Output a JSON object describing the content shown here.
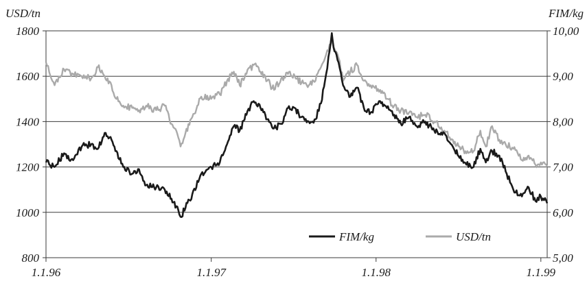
{
  "chart_data": {
    "type": "line",
    "left_axis_label": "USD/tn",
    "right_axis_label": "FIM/kg",
    "y_left_range": [
      800,
      1800
    ],
    "y_right_range": [
      5.0,
      10.0
    ],
    "y_left_ticks": [
      "1800",
      "1600",
      "1400",
      "1200",
      "1000",
      "800"
    ],
    "y_right_ticks": [
      "10,00",
      "9,00",
      "8,00",
      "7,00",
      "6,00",
      "5,00"
    ],
    "x_range": [
      "1996-01-01",
      "1999-01-15"
    ],
    "x_ticks": [
      {
        "label": "1.1.96",
        "date": "1996-01-01"
      },
      {
        "label": "1.1.97",
        "date": "1997-01-01"
      },
      {
        "label": "1.1.98",
        "date": "1998-01-01"
      },
      {
        "label": "1.1.99",
        "date": "1999-01-01"
      }
    ],
    "grid": "horizontal",
    "legend_position": "bottom-right",
    "series": [
      {
        "name": "FIM/kg",
        "axis": "right",
        "color": "#1a1a1a",
        "points": [
          [
            "1996-01-01",
            7.1
          ],
          [
            "1996-01-20",
            7.0
          ],
          [
            "1996-02-10",
            7.3
          ],
          [
            "1996-03-01",
            7.15
          ],
          [
            "1996-03-20",
            7.45
          ],
          [
            "1996-04-10",
            7.5
          ],
          [
            "1996-04-25",
            7.4
          ],
          [
            "1996-05-10",
            7.75
          ],
          [
            "1996-05-25",
            7.6
          ],
          [
            "1996-06-05",
            7.35
          ],
          [
            "1996-06-20",
            7.0
          ],
          [
            "1996-07-10",
            6.85
          ],
          [
            "1996-07-25",
            6.95
          ],
          [
            "1996-08-10",
            6.6
          ],
          [
            "1996-09-01",
            6.55
          ],
          [
            "1996-09-20",
            6.5
          ],
          [
            "1996-10-05",
            6.3
          ],
          [
            "1996-10-20",
            6.05
          ],
          [
            "1996-10-25",
            5.9
          ],
          [
            "1996-11-05",
            6.1
          ],
          [
            "1996-11-20",
            6.4
          ],
          [
            "1996-12-10",
            6.85
          ],
          [
            "1997-01-01",
            7.0
          ],
          [
            "1997-01-20",
            7.1
          ],
          [
            "1997-02-05",
            7.5
          ],
          [
            "1997-02-20",
            7.9
          ],
          [
            "1997-03-05",
            7.8
          ],
          [
            "1997-03-20",
            8.15
          ],
          [
            "1997-04-05",
            8.45
          ],
          [
            "1997-04-20",
            8.3
          ],
          [
            "1997-05-05",
            8.05
          ],
          [
            "1997-05-20",
            7.85
          ],
          [
            "1997-06-05",
            7.95
          ],
          [
            "1997-06-20",
            8.3
          ],
          [
            "1997-07-05",
            8.3
          ],
          [
            "1997-07-20",
            8.1
          ],
          [
            "1997-08-05",
            8.0
          ],
          [
            "1997-08-20",
            8.05
          ],
          [
            "1997-09-01",
            8.4
          ],
          [
            "1997-09-10",
            8.9
          ],
          [
            "1997-09-20",
            9.55
          ],
          [
            "1997-09-25",
            9.95
          ],
          [
            "1997-10-01",
            9.55
          ],
          [
            "1997-10-10",
            9.3
          ],
          [
            "1997-10-20",
            8.8
          ],
          [
            "1997-11-05",
            8.55
          ],
          [
            "1997-11-20",
            8.75
          ],
          [
            "1997-12-05",
            8.3
          ],
          [
            "1997-12-20",
            8.2
          ],
          [
            "1998-01-10",
            8.45
          ],
          [
            "1998-01-25",
            8.3
          ],
          [
            "1998-02-10",
            8.15
          ],
          [
            "1998-02-25",
            7.95
          ],
          [
            "1998-03-15",
            8.1
          ],
          [
            "1998-04-01",
            7.9
          ],
          [
            "1998-04-20",
            8.0
          ],
          [
            "1998-05-10",
            7.8
          ],
          [
            "1998-06-01",
            7.75
          ],
          [
            "1998-06-20",
            7.45
          ],
          [
            "1998-07-05",
            7.2
          ],
          [
            "1998-07-20",
            7.05
          ],
          [
            "1998-08-05",
            7.0
          ],
          [
            "1998-08-20",
            7.4
          ],
          [
            "1998-09-01",
            7.1
          ],
          [
            "1998-09-15",
            7.35
          ],
          [
            "1998-10-01",
            7.25
          ],
          [
            "1998-10-15",
            6.9
          ],
          [
            "1998-11-01",
            6.5
          ],
          [
            "1998-11-20",
            6.35
          ],
          [
            "1998-12-05",
            6.55
          ],
          [
            "1998-12-20",
            6.25
          ],
          [
            "1999-01-01",
            6.35
          ],
          [
            "1999-01-15",
            6.2
          ]
        ]
      },
      {
        "name": "USD/tn",
        "axis": "left",
        "color": "#aaaaaa",
        "points": [
          [
            "1996-01-01",
            1660
          ],
          [
            "1996-01-20",
            1560
          ],
          [
            "1996-02-10",
            1630
          ],
          [
            "1996-03-01",
            1610
          ],
          [
            "1996-03-20",
            1600
          ],
          [
            "1996-04-10",
            1590
          ],
          [
            "1996-04-25",
            1640
          ],
          [
            "1996-05-10",
            1600
          ],
          [
            "1996-05-25",
            1560
          ],
          [
            "1996-06-05",
            1500
          ],
          [
            "1996-06-20",
            1470
          ],
          [
            "1996-07-10",
            1460
          ],
          [
            "1996-07-25",
            1450
          ],
          [
            "1996-08-10",
            1470
          ],
          [
            "1996-09-01",
            1450
          ],
          [
            "1996-09-20",
            1470
          ],
          [
            "1996-10-05",
            1390
          ],
          [
            "1996-10-20",
            1330
          ],
          [
            "1996-10-25",
            1290
          ],
          [
            "1996-11-05",
            1350
          ],
          [
            "1996-11-20",
            1420
          ],
          [
            "1996-12-10",
            1510
          ],
          [
            "1997-01-01",
            1500
          ],
          [
            "1997-01-20",
            1520
          ],
          [
            "1997-02-05",
            1580
          ],
          [
            "1997-02-20",
            1620
          ],
          [
            "1997-03-05",
            1560
          ],
          [
            "1997-03-20",
            1610
          ],
          [
            "1997-04-05",
            1650
          ],
          [
            "1997-04-20",
            1620
          ],
          [
            "1997-05-05",
            1580
          ],
          [
            "1997-05-20",
            1540
          ],
          [
            "1997-06-05",
            1590
          ],
          [
            "1997-06-20",
            1610
          ],
          [
            "1997-07-05",
            1600
          ],
          [
            "1997-07-20",
            1570
          ],
          [
            "1997-08-05",
            1560
          ],
          [
            "1997-08-20",
            1580
          ],
          [
            "1997-09-01",
            1640
          ],
          [
            "1997-09-10",
            1680
          ],
          [
            "1997-09-20",
            1740
          ],
          [
            "1997-09-25",
            1760
          ],
          [
            "1997-10-01",
            1720
          ],
          [
            "1997-10-10",
            1680
          ],
          [
            "1997-10-20",
            1580
          ],
          [
            "1997-11-05",
            1620
          ],
          [
            "1997-11-20",
            1650
          ],
          [
            "1997-12-05",
            1580
          ],
          [
            "1997-12-20",
            1560
          ],
          [
            "1998-01-10",
            1540
          ],
          [
            "1998-01-25",
            1500
          ],
          [
            "1998-02-10",
            1470
          ],
          [
            "1998-02-25",
            1450
          ],
          [
            "1998-03-15",
            1440
          ],
          [
            "1998-04-01",
            1420
          ],
          [
            "1998-04-20",
            1430
          ],
          [
            "1998-05-10",
            1400
          ],
          [
            "1998-06-01",
            1360
          ],
          [
            "1998-06-20",
            1320
          ],
          [
            "1998-07-05",
            1290
          ],
          [
            "1998-07-20",
            1260
          ],
          [
            "1998-08-05",
            1270
          ],
          [
            "1998-08-20",
            1360
          ],
          [
            "1998-09-01",
            1290
          ],
          [
            "1998-09-15",
            1380
          ],
          [
            "1998-10-01",
            1320
          ],
          [
            "1998-10-15",
            1300
          ],
          [
            "1998-11-01",
            1280
          ],
          [
            "1998-11-20",
            1230
          ],
          [
            "1998-12-05",
            1250
          ],
          [
            "1998-12-20",
            1210
          ],
          [
            "1999-01-01",
            1220
          ],
          [
            "1999-01-15",
            1200
          ]
        ]
      }
    ]
  }
}
